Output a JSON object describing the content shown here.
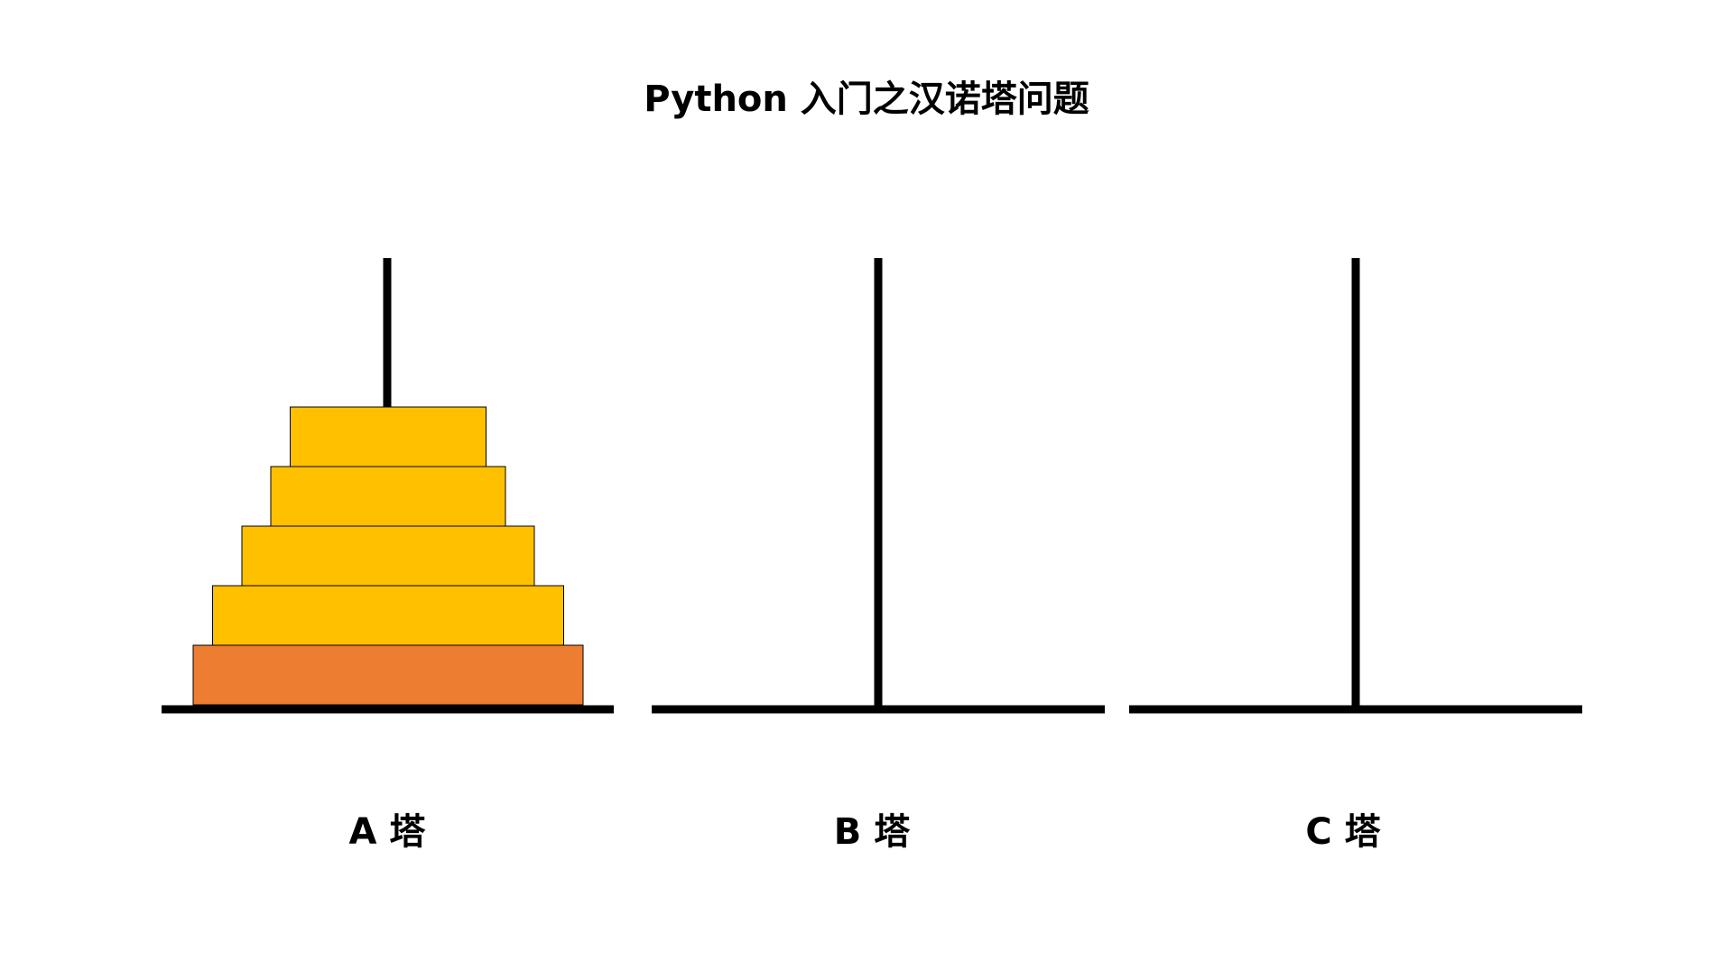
{
  "title": "Python 入门之汉诺塔问题",
  "colors": {
    "pole": "#000000",
    "disk": "#FFC000",
    "base_disk": "#ED7D31",
    "disk_border": "#000000",
    "background": "#FFFFFF"
  },
  "towers": [
    {
      "label": "A 塔",
      "disks": 5
    },
    {
      "label": "B 塔",
      "disks": 0
    },
    {
      "label": "C 塔",
      "disks": 0
    }
  ],
  "disks": [
    {
      "size": 5,
      "color": "base_disk"
    },
    {
      "size": 4,
      "color": "disk"
    },
    {
      "size": 3,
      "color": "disk"
    },
    {
      "size": 2,
      "color": "disk"
    },
    {
      "size": 1,
      "color": "disk"
    }
  ]
}
